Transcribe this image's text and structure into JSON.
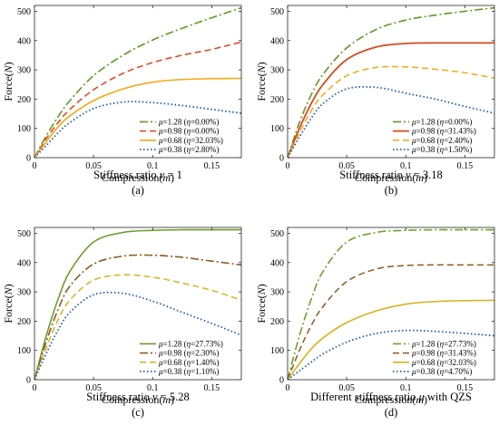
{
  "colors": {
    "mu128": "#5d9a25",
    "mu098_a": "#e43f17",
    "mu098_b": "#d94a1c",
    "mu068": "#f5a815",
    "mu038": "#1f5dab",
    "c_mu128": "#6e9b2c",
    "c_mu098": "#8e5a1f",
    "c_mu068": "#d8b31d",
    "c_mu038": "#1f5dab",
    "d_mu128": "#6ea02c",
    "d_mu098": "#8e5a1f",
    "d_mu068": "#d8b31d",
    "d_mu038": "#1f5dab"
  },
  "chart_data": [
    {
      "type": "line",
      "panel": "(a)",
      "caption": "Stiffness ratio ν = 1",
      "caption_parts": [
        "Stiffness ratio ",
        "ν",
        " = 1"
      ],
      "xlabel": "Compression(m)",
      "ylabel": "Force(N)",
      "xlim": [
        0,
        0.175
      ],
      "ylim": [
        0,
        520
      ],
      "xticks": [
        0,
        0.05,
        0.1,
        0.15
      ],
      "xtick_labels": [
        "0",
        "0.05",
        "0.1",
        "0.15"
      ],
      "yticks": [
        0,
        100,
        200,
        300,
        400,
        500
      ],
      "ytick_labels": [
        "0",
        "100",
        "200",
        "300",
        "400",
        "500"
      ],
      "legend_position": "lower-right",
      "x": [
        0,
        0.01,
        0.02,
        0.03,
        0.05,
        0.075,
        0.1,
        0.125,
        0.15,
        0.175
      ],
      "series": [
        {
          "name": "μ=1.28 (η=0.00%)",
          "legend_mu": "μ=1.28 (",
          "legend_eta": "η",
          "legend_val": "=0.00%)",
          "color": "#5d9a25",
          "dash": "9,3,2,3",
          "width": 1.6,
          "values": [
            0,
            75,
            140,
            195,
            280,
            350,
            402,
            442,
            478,
            512
          ]
        },
        {
          "name": "μ=0.98 (η=0.00%)",
          "legend_mu": "μ=0.98 (",
          "legend_eta": "η",
          "legend_val": "=0.00%)",
          "color": "#e43f17",
          "dash": "7,4",
          "width": 1.5,
          "values": [
            0,
            65,
            120,
            165,
            232,
            288,
            325,
            350,
            370,
            395
          ]
        },
        {
          "name": "μ=0.68 (η=32.03%)",
          "legend_mu": "μ=0.68 (",
          "legend_eta": "η",
          "legend_val": "=32.03%)",
          "color": "#f5a815",
          "dash": "",
          "width": 1.6,
          "values": [
            0,
            55,
            105,
            143,
            195,
            235,
            258,
            267,
            270,
            271
          ]
        },
        {
          "name": "μ=0.38 (η=2.80%)",
          "legend_mu": "μ=0.38 (",
          "legend_eta": "η",
          "legend_val": "=2.80%)",
          "color": "#1f5dab",
          "dash": "1.5,2.5",
          "width": 1.8,
          "values": [
            0,
            42,
            85,
            120,
            168,
            190,
            188,
            178,
            165,
            152
          ]
        }
      ]
    },
    {
      "type": "line",
      "panel": "(b)",
      "caption": "Stiffness ratio ν = 3.18",
      "caption_parts": [
        "Stiffness ratio ",
        "ν",
        " = 3.18"
      ],
      "xlabel": "Compression(m)",
      "ylabel": "Force(N)",
      "xlim": [
        0,
        0.175
      ],
      "ylim": [
        0,
        520
      ],
      "xticks": [
        0,
        0.05,
        0.1,
        0.15
      ],
      "xtick_labels": [
        "0",
        "0.05",
        "0.1",
        "0.15"
      ],
      "yticks": [
        0,
        100,
        200,
        300,
        400,
        500
      ],
      "ytick_labels": [
        "0",
        "100",
        "200",
        "300",
        "400",
        "500"
      ],
      "legend_position": "lower-right",
      "x": [
        0,
        0.01,
        0.02,
        0.03,
        0.05,
        0.075,
        0.1,
        0.125,
        0.15,
        0.175
      ],
      "series": [
        {
          "name": "μ=1.28 (η=0.00%)",
          "legend_mu": "μ=1.28 (",
          "legend_eta": "η",
          "legend_val": "=0.00%)",
          "color": "#5d9a25",
          "dash": "9,3,2,3",
          "width": 1.6,
          "values": [
            0,
            120,
            215,
            285,
            375,
            438,
            470,
            487,
            500,
            512
          ]
        },
        {
          "name": "μ=0.98 (η=31.43%)",
          "legend_mu": "μ=0.98 (",
          "legend_eta": "η",
          "legend_val": "=31.43%)",
          "color": "#d94a1c",
          "dash": "",
          "width": 1.8,
          "values": [
            0,
            100,
            185,
            250,
            335,
            378,
            390,
            392,
            392,
            392
          ]
        },
        {
          "name": "μ=0.68 (η=2.40%)",
          "legend_mu": "μ=0.68 (",
          "legend_eta": "η",
          "legend_val": "=2.40%)",
          "color": "#f5a815",
          "dash": "7,4",
          "width": 1.5,
          "values": [
            0,
            85,
            160,
            215,
            280,
            308,
            310,
            302,
            290,
            272
          ]
        },
        {
          "name": "μ=0.38 (η=1.50%)",
          "legend_mu": "μ=0.38 (",
          "legend_eta": "η",
          "legend_val": "=1.50%)",
          "color": "#1f5dab",
          "dash": "1.5,2.5",
          "width": 1.8,
          "values": [
            0,
            70,
            135,
            185,
            235,
            240,
            220,
            200,
            175,
            152
          ]
        }
      ]
    },
    {
      "type": "line",
      "panel": "(c)",
      "caption": "Stiffness ratio ν = 5.28",
      "caption_parts": [
        "Stiffness ratio ",
        "ν",
        " = 5.28"
      ],
      "xlabel": "Compression(m)",
      "ylabel": "Force(N)",
      "xlim": [
        0,
        0.175
      ],
      "ylim": [
        0,
        520
      ],
      "xticks": [
        0,
        0.05,
        0.1,
        0.15
      ],
      "xtick_labels": [
        "0",
        "0.05",
        "0.1",
        "0.15"
      ],
      "yticks": [
        0,
        100,
        200,
        300,
        400,
        500
      ],
      "ytick_labels": [
        "0",
        "100",
        "200",
        "300",
        "400",
        "500"
      ],
      "legend_position": "lower-right",
      "x": [
        0,
        0.01,
        0.02,
        0.03,
        0.05,
        0.075,
        0.1,
        0.125,
        0.15,
        0.175
      ],
      "series": [
        {
          "name": "μ=1.28 (η=27.73%)",
          "legend_mu": "μ=1.28 (",
          "legend_eta": "η",
          "legend_val": "=27.73%)",
          "color": "#6e9b2c",
          "dash": "",
          "width": 1.6,
          "values": [
            0,
            150,
            275,
            370,
            470,
            503,
            510,
            512,
            512,
            512
          ]
        },
        {
          "name": "μ=0.98 (η=2.30%)",
          "legend_mu": "μ=0.98 (",
          "legend_eta": "η",
          "legend_val": "=2.30%)",
          "color": "#8e5a1f",
          "dash": "9,3,2,3",
          "width": 1.6,
          "values": [
            0,
            130,
            240,
            320,
            395,
            422,
            425,
            418,
            405,
            392
          ]
        },
        {
          "name": "μ=0.68 (η=1.40%)",
          "legend_mu": "μ=0.68 (",
          "legend_eta": "η",
          "legend_val": "=1.40%)",
          "color": "#d8b31d",
          "dash": "7,4",
          "width": 1.5,
          "values": [
            0,
            110,
            205,
            272,
            340,
            358,
            350,
            330,
            305,
            272
          ]
        },
        {
          "name": "μ=0.38 (η=1.10%)",
          "legend_mu": "μ=0.38 (",
          "legend_eta": "η",
          "legend_val": "=1.10%)",
          "color": "#1f5dab",
          "dash": "1.5,2.5",
          "width": 1.8,
          "values": [
            0,
            90,
            170,
            230,
            290,
            295,
            268,
            230,
            192,
            152
          ]
        }
      ]
    },
    {
      "type": "line",
      "panel": "(d)",
      "caption": "Different stiffness ratio μ with QZS",
      "caption_parts": [
        "Different stiffness ratio ",
        "μ",
        " with QZS"
      ],
      "xlabel": "Compression(m)",
      "ylabel": "Force(N)",
      "xlim": [
        0,
        0.175
      ],
      "ylim": [
        0,
        520
      ],
      "xticks": [
        0,
        0.05,
        0.1,
        0.15
      ],
      "xtick_labels": [
        "0",
        "0.05",
        "0.1",
        "0.15"
      ],
      "yticks": [
        0,
        100,
        200,
        300,
        400,
        500
      ],
      "ytick_labels": [
        "0",
        "100",
        "200",
        "300",
        "400",
        "500"
      ],
      "legend_position": "lower-right",
      "x": [
        0,
        0.01,
        0.02,
        0.03,
        0.05,
        0.075,
        0.1,
        0.125,
        0.15,
        0.175
      ],
      "series": [
        {
          "name": "μ=1.28 (η=27.73%)",
          "legend_mu": "μ=1.28 (",
          "legend_eta": "η",
          "legend_val": "=27.73%)",
          "color": "#6ea02c",
          "dash": "9,3,2,3",
          "width": 1.6,
          "values": [
            0,
            150,
            275,
            370,
            470,
            503,
            510,
            512,
            512,
            512
          ]
        },
        {
          "name": "μ=0.98 (η=31.43%)",
          "legend_mu": "μ=0.98 (",
          "legend_eta": "η",
          "legend_val": "=31.43%)",
          "color": "#8e5a1f",
          "dash": "7,4",
          "width": 1.5,
          "values": [
            0,
            100,
            185,
            250,
            335,
            378,
            390,
            392,
            392,
            392
          ]
        },
        {
          "name": "μ=0.68 (η=32.03%)",
          "legend_mu": "μ=0.68 (",
          "legend_eta": "η",
          "legend_val": "=32.03%)",
          "color": "#d8b31d",
          "dash": "",
          "width": 1.6,
          "values": [
            0,
            55,
            105,
            143,
            195,
            235,
            258,
            267,
            270,
            271
          ]
        },
        {
          "name": "μ=0.38 (η=4.70%)",
          "legend_mu": "μ=0.38 (",
          "legend_eta": "η",
          "legend_val": "=4.70%)",
          "color": "#1f5dab",
          "dash": "1.5,2.5",
          "width": 1.8,
          "values": [
            0,
            30,
            60,
            88,
            128,
            158,
            168,
            165,
            158,
            150
          ]
        }
      ]
    }
  ]
}
